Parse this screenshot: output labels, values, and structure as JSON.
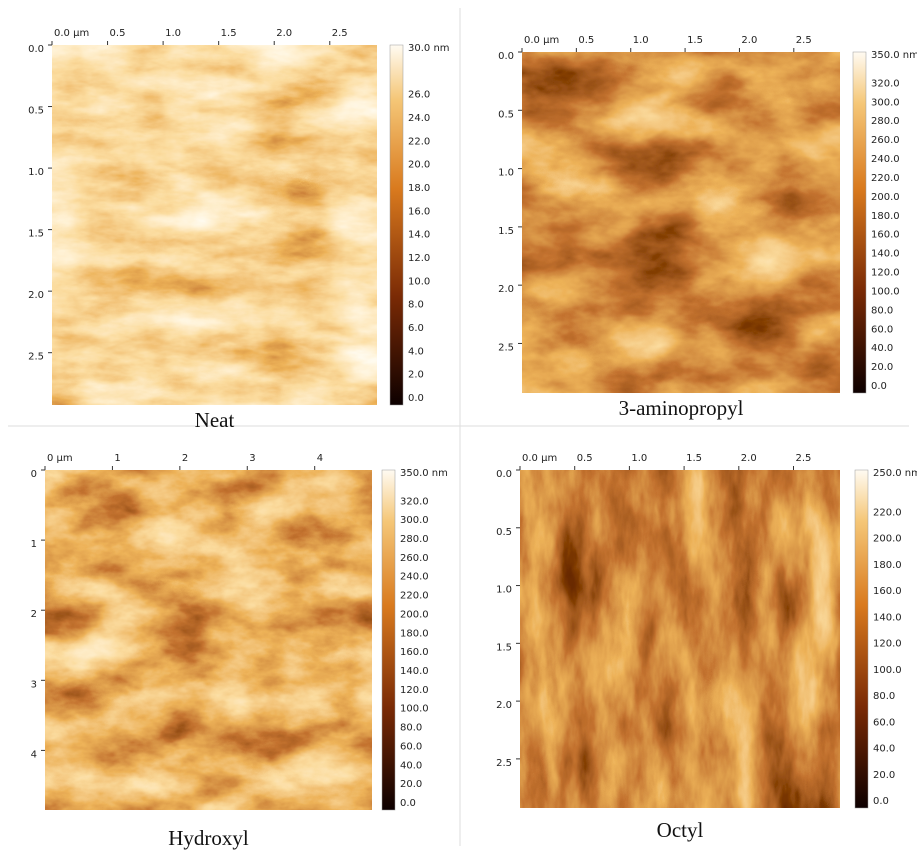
{
  "panels": [
    {
      "caption": "Neat",
      "xticks": [
        "0.0 µm",
        "0.5",
        "1.0",
        "1.5",
        "2.0",
        "2.5"
      ],
      "yticks": [
        "0.0",
        "0.5",
        "1.0",
        "1.5",
        "2.0",
        "2.5"
      ],
      "colorbar": [
        "30.0 nm",
        "26.0",
        "24.0",
        "22.0",
        "20.0",
        "18.0",
        "16.0",
        "14.0",
        "12.0",
        "10.0",
        "8.0",
        "6.0",
        "4.0",
        "2.0",
        "0.0"
      ]
    },
    {
      "caption": "3-aminopropyl",
      "xticks": [
        "0.0 µm",
        "0.5",
        "1.0",
        "1.5",
        "2.0",
        "2.5"
      ],
      "yticks": [
        "0.0",
        "0.5",
        "1.0",
        "1.5",
        "2.0",
        "2.5"
      ],
      "colorbar": [
        "350.0 nm",
        "320.0",
        "300.0",
        "280.0",
        "260.0",
        "240.0",
        "220.0",
        "200.0",
        "180.0",
        "160.0",
        "140.0",
        "120.0",
        "100.0",
        "80.0",
        "60.0",
        "40.0",
        "20.0",
        "0.0"
      ]
    },
    {
      "caption": "Hydroxyl",
      "xticks": [
        "0 µm",
        "1",
        "2",
        "3",
        "4"
      ],
      "yticks": [
        "0",
        "1",
        "2",
        "3",
        "4"
      ],
      "colorbar": [
        "350.0 nm",
        "320.0",
        "300.0",
        "280.0",
        "260.0",
        "240.0",
        "220.0",
        "200.0",
        "180.0",
        "160.0",
        "140.0",
        "120.0",
        "100.0",
        "80.0",
        "60.0",
        "40.0",
        "20.0",
        "0.0"
      ]
    },
    {
      "caption": "Octyl",
      "xticks": [
        "0.0 µm",
        "0.5",
        "1.0",
        "1.5",
        "2.0",
        "2.5"
      ],
      "yticks": [
        "0.0",
        "0.5",
        "1.0",
        "1.5",
        "2.0",
        "2.5"
      ],
      "colorbar": [
        "250.0 nm",
        "220.0",
        "200.0",
        "180.0",
        "160.0",
        "140.0",
        "120.0",
        "100.0",
        "80.0",
        "60.0",
        "40.0",
        "20.0",
        "0.0"
      ]
    }
  ]
}
